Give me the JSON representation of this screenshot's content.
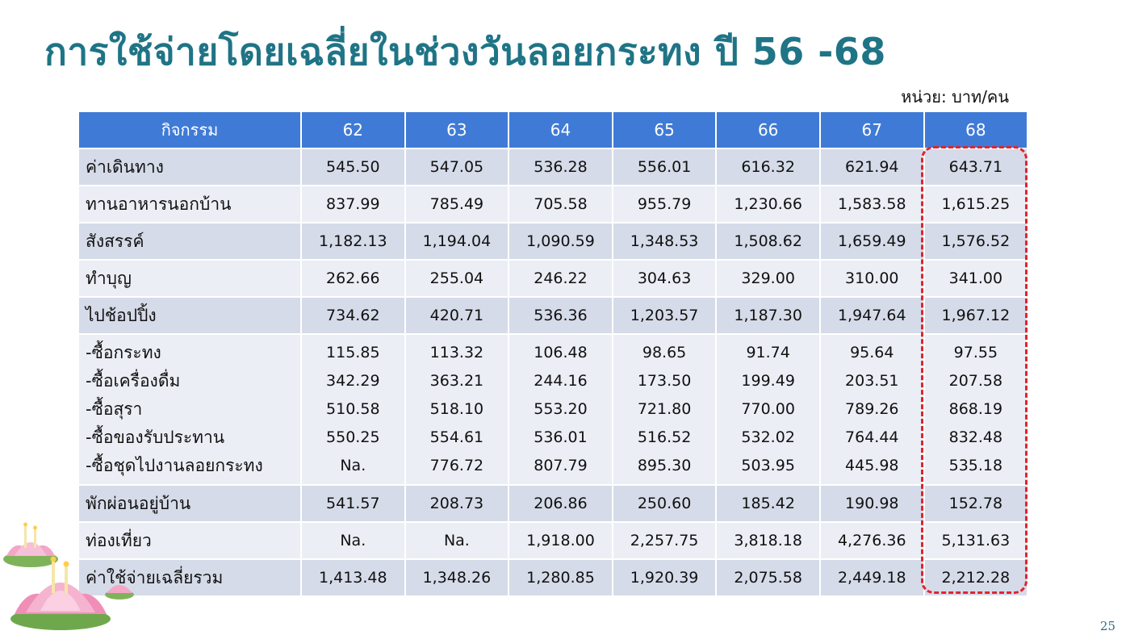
{
  "slide": {
    "title": "การใช้จ่ายโดยเฉลี่ยในช่วงวันลอยกระทง ปี 56 -68",
    "unit": "หน่วย: บาท/คน",
    "page_number": "25",
    "highlight_color": "#e0242d",
    "header_color": "#3f7bd6",
    "title_color": "#1f7486"
  },
  "table": {
    "headers": [
      "กิจกรรม",
      "62",
      "63",
      "64",
      "65",
      "66",
      "67",
      "68"
    ],
    "rows": [
      {
        "label": "ค่าเดินทาง",
        "values": [
          "545.50",
          "547.05",
          "536.28",
          "556.01",
          "616.32",
          "621.94",
          "643.71"
        ]
      },
      {
        "label": "ทานอาหารนอกบ้าน",
        "values": [
          "837.99",
          "785.49",
          "705.58",
          "955.79",
          "1,230.66",
          "1,583.58",
          "1,615.25"
        ]
      },
      {
        "label": "สังสรรค์",
        "values": [
          "1,182.13",
          "1,194.04",
          "1,090.59",
          "1,348.53",
          "1,508.62",
          "1,659.49",
          "1,576.52"
        ]
      },
      {
        "label": "ทำบุญ",
        "values": [
          "262.66",
          "255.04",
          "246.22",
          "304.63",
          "329.00",
          "310.00",
          "341.00"
        ]
      },
      {
        "label": "ไปช้อปปิ้ง",
        "values": [
          "734.62",
          "420.71",
          "536.36",
          "1,203.57",
          "1,187.30",
          "1,947.64",
          "1,967.12"
        ]
      }
    ],
    "sub_rows": [
      {
        "label": "-ซื้อกระทง",
        "values": [
          "115.85",
          "113.32",
          "106.48",
          "98.65",
          "91.74",
          "95.64",
          "97.55"
        ]
      },
      {
        "label": "-ซื้อเครื่องดื่ม",
        "values": [
          "342.29",
          "363.21",
          "244.16",
          "173.50",
          "199.49",
          "203.51",
          "207.58"
        ]
      },
      {
        "label": "-ซื้อสุรา",
        "values": [
          "510.58",
          "518.10",
          "553.20",
          "721.80",
          "770.00",
          "789.26",
          "868.19"
        ]
      },
      {
        "label": "-ซื้อของรับประทาน",
        "values": [
          "550.25",
          "554.61",
          "536.01",
          "516.52",
          "532.02",
          "764.44",
          "832.48"
        ]
      },
      {
        "label": "-ซื้อชุดไปงานลอยกระทง",
        "values": [
          "Na.",
          "776.72",
          "807.79",
          "895.30",
          "503.95",
          "445.98",
          "535.18"
        ]
      }
    ],
    "rows_after": [
      {
        "label": "พักผ่อนอยู่บ้าน",
        "values": [
          "541.57",
          "208.73",
          "206.86",
          "250.60",
          "185.42",
          "190.98",
          "152.78"
        ]
      },
      {
        "label": "ท่องเที่ยว",
        "values": [
          "Na.",
          "Na.",
          "1,918.00",
          "2,257.75",
          "3,818.18",
          "4,276.36",
          "5,131.63"
        ]
      },
      {
        "label": "ค่าใช้จ่ายเฉลี่ยรวม",
        "values": [
          "1,413.48",
          "1,348.26",
          "1,280.85",
          "1,920.39",
          "2,075.58",
          "2,449.18",
          "2,212.28"
        ]
      }
    ]
  }
}
